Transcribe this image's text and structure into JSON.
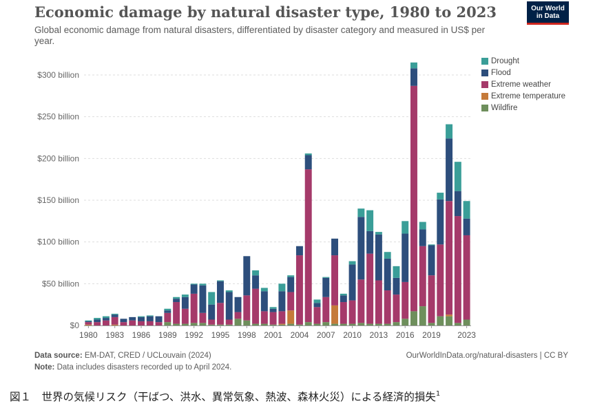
{
  "header": {
    "title": "Economic damage by natural disaster type, 1980 to 2023",
    "subtitle": "Global economic damage from natural disasters, differentiated by disaster category and measured in US$ per year.",
    "logo_line1": "Our World",
    "logo_line2": "in Data"
  },
  "footer": {
    "source_label": "Data source:",
    "source_text": "EM-DAT, CRED / UCLouvain (2024)",
    "note_label": "Note:",
    "note_text": "Data includes disasters recorded up to April 2024.",
    "url": "OurWorldInData.org/natural-disasters | CC BY"
  },
  "caption": {
    "text": "図１　世界の気候リスク（干ばつ、洪水、異常気象、熱波、森林火災）による経済的損失",
    "superscript": "1"
  },
  "colors": {
    "drought": "#3a9e98",
    "flood": "#2d4e7c",
    "extreme_weather": "#a53a6a",
    "extreme_temperature": "#c57a3a",
    "wildfire": "#6e8f5c",
    "grid": "#dddddd"
  },
  "chart_data": {
    "type": "bar",
    "stacked": true,
    "x": [
      1980,
      1981,
      1982,
      1983,
      1984,
      1985,
      1986,
      1987,
      1988,
      1989,
      1990,
      1991,
      1992,
      1993,
      1994,
      1995,
      1996,
      1997,
      1998,
      1999,
      2000,
      2001,
      2002,
      2003,
      2004,
      2005,
      2006,
      2007,
      2008,
      2009,
      2010,
      2011,
      2012,
      2013,
      2014,
      2015,
      2016,
      2017,
      2018,
      2019,
      2020,
      2021,
      2022,
      2023
    ],
    "x_tick_labels": [
      "1980",
      "1983",
      "1986",
      "1989",
      "1992",
      "1995",
      "1998",
      "2001",
      "2004",
      "2007",
      "2010",
      "2013",
      "2016",
      "2019",
      "2023"
    ],
    "y_tick_labels": [
      "$0",
      "$50 billion",
      "$100 billion",
      "$150 billion",
      "$200 billion",
      "$250 billion",
      "$300 billion"
    ],
    "y_ticks": [
      0,
      50,
      100,
      150,
      200,
      250,
      300
    ],
    "ylim": [
      0,
      320
    ],
    "y_unit": "billion US$",
    "legend_position": "right",
    "series": [
      {
        "name": "Wildfire",
        "key": "wildfire",
        "values": [
          0,
          0,
          0,
          0,
          0,
          0,
          0,
          0,
          0,
          4,
          2,
          2,
          3,
          3,
          1,
          1,
          1,
          8,
          6,
          2,
          2,
          1,
          1,
          2,
          1,
          4,
          2,
          4,
          2,
          2,
          2,
          3,
          2,
          2,
          2,
          4,
          8,
          17,
          23,
          3,
          11,
          11,
          3,
          7
        ]
      },
      {
        "name": "Extreme temperature",
        "key": "extreme_temperature",
        "values": [
          1,
          0,
          0,
          1,
          0,
          0,
          0,
          0,
          0,
          0,
          0,
          0,
          0,
          0,
          0,
          0,
          0,
          0,
          0,
          0,
          0,
          0,
          1,
          16,
          0,
          0,
          0,
          0,
          22,
          0,
          0,
          0,
          0,
          0,
          0,
          0,
          0,
          0,
          0,
          0,
          0,
          2,
          0,
          0
        ]
      },
      {
        "name": "Extreme weather",
        "key": "extreme_weather",
        "values": [
          3,
          4,
          6,
          9,
          4,
          6,
          5,
          5,
          4,
          11,
          26,
          18,
          35,
          12,
          6,
          26,
          6,
          8,
          30,
          42,
          15,
          15,
          15,
          22,
          83,
          183,
          20,
          30,
          60,
          26,
          28,
          52,
          84,
          52,
          40,
          33,
          44,
          270,
          72,
          57,
          86,
          136,
          128,
          101
        ]
      },
      {
        "name": "Flood",
        "key": "flood",
        "values": [
          1,
          3,
          3,
          3,
          4,
          4,
          5,
          6,
          7,
          3,
          4,
          14,
          11,
          33,
          18,
          26,
          33,
          18,
          47,
          16,
          24,
          4,
          24,
          18,
          11,
          17,
          5,
          23,
          20,
          8,
          43,
          75,
          27,
          55,
          38,
          20,
          58,
          21,
          20,
          36,
          54,
          75,
          30,
          20
        ]
      },
      {
        "name": "Drought",
        "key": "drought",
        "values": [
          1,
          2,
          2,
          1,
          0,
          0,
          1,
          1,
          0,
          2,
          2,
          3,
          1,
          2,
          15,
          1,
          2,
          0,
          0,
          6,
          4,
          2,
          9,
          2,
          0,
          2,
          4,
          1,
          0,
          2,
          4,
          10,
          25,
          3,
          8,
          14,
          15,
          7,
          9,
          1,
          8,
          17,
          35,
          21
        ]
      }
    ]
  }
}
